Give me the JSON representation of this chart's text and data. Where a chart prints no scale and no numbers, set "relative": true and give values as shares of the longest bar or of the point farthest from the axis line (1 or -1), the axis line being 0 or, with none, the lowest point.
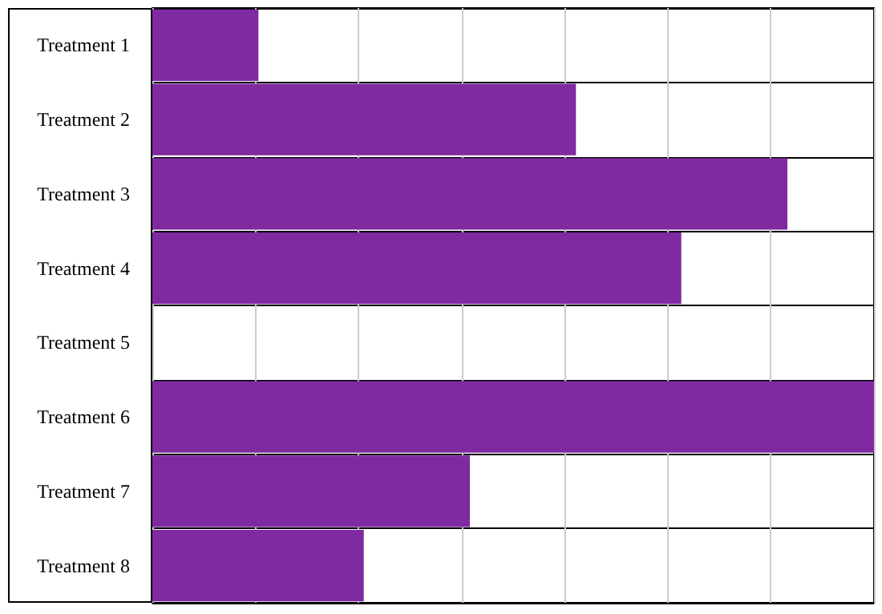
{
  "chart_data": {
    "type": "bar",
    "orientation": "horizontal",
    "relative": true,
    "categories": [
      "Treatment 1",
      "Treatment 2",
      "Treatment 3",
      "Treatment 4",
      "Treatment 5",
      "Treatment 6",
      "Treatment 7",
      "Treatment 8"
    ],
    "values": [
      0.147,
      0.587,
      0.88,
      0.733,
      0,
      1,
      0.44,
      0.293
    ],
    "color": "#7f2aa1",
    "grid": true
  }
}
